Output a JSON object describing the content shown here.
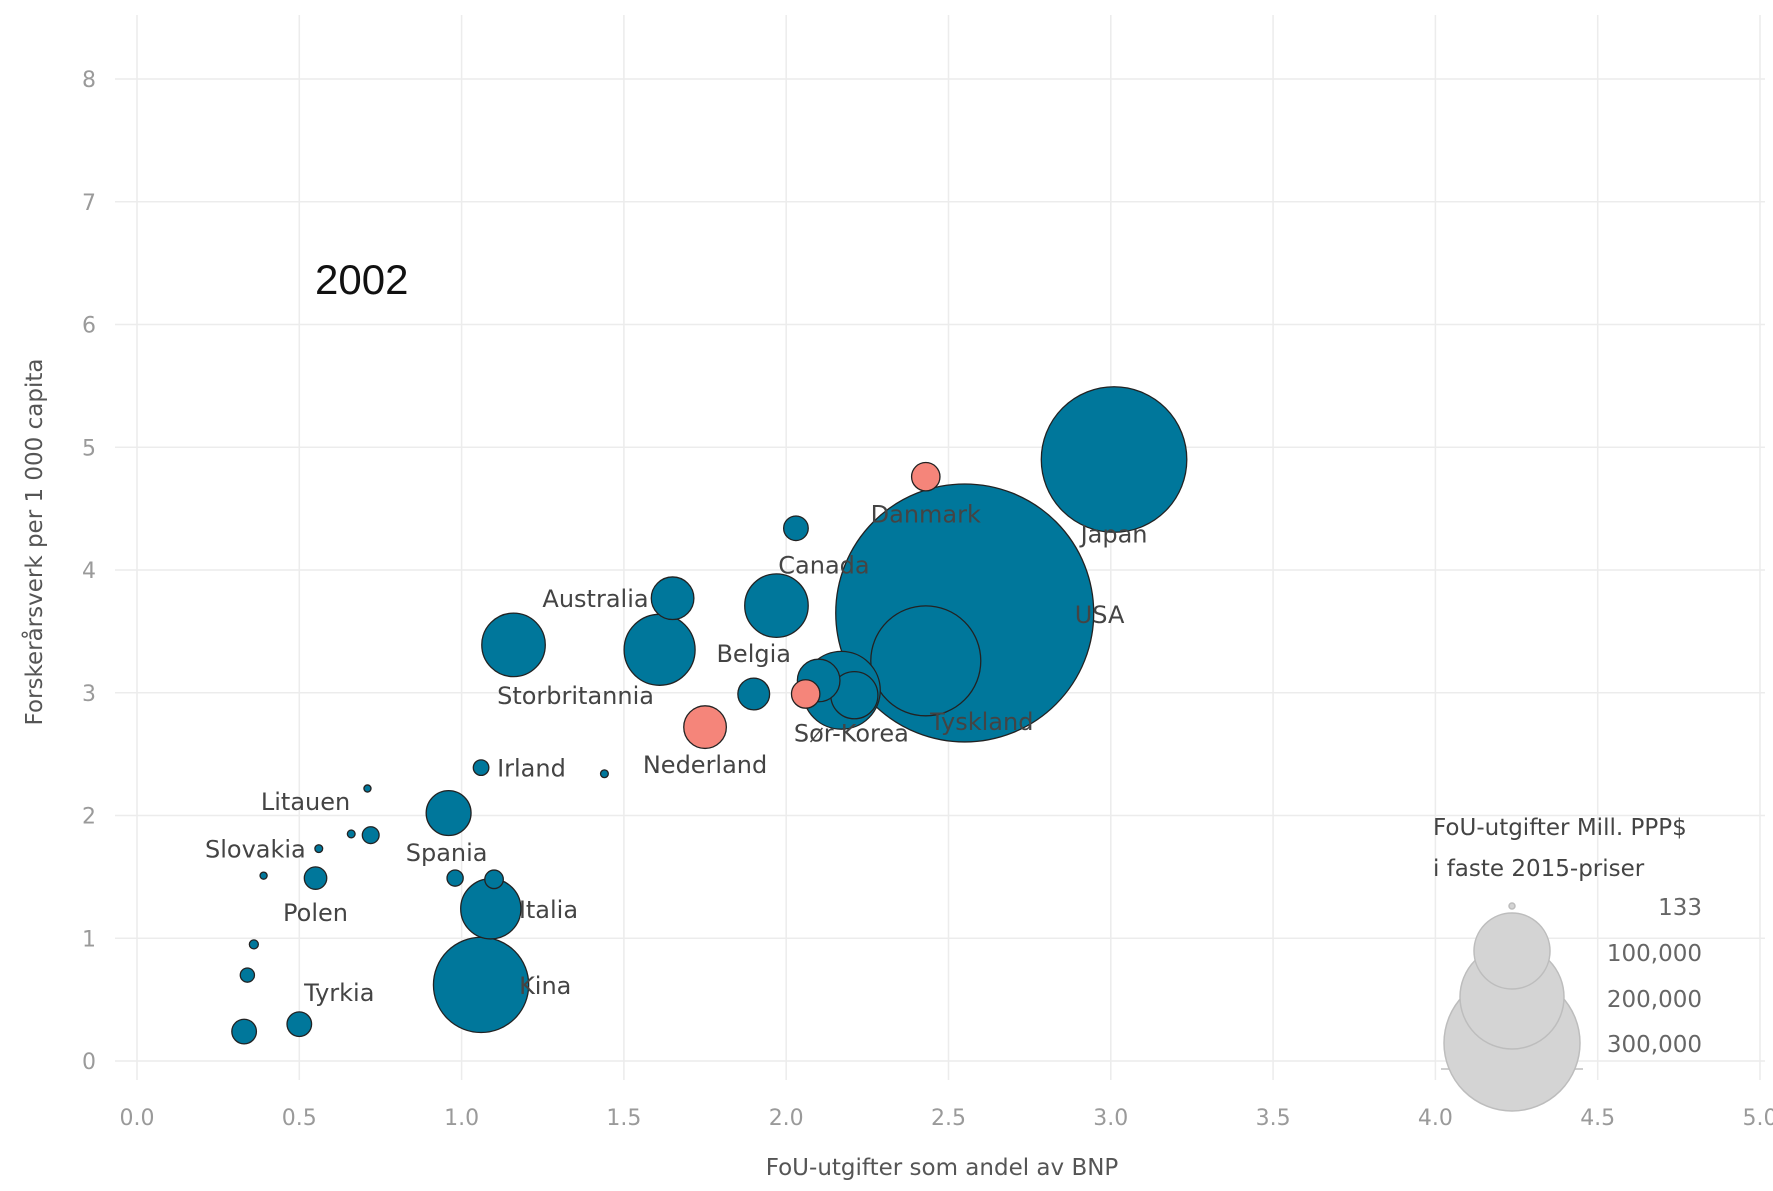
{
  "chart_data": {
    "type": "scatter",
    "annotation": "2002",
    "xlabel": "FoU-utgifter som andel av BNP",
    "ylabel": "Forskerårsverk per 1 000 capita",
    "xlim": [
      0.0,
      5.0
    ],
    "ylim": [
      0,
      8
    ],
    "x_ticks": [
      "0.0",
      "0.5",
      "1.0",
      "1.5",
      "2.0",
      "2.5",
      "3.0",
      "3.5",
      "4.0",
      "4.5",
      "5.0"
    ],
    "y_ticks": [
      "0",
      "1",
      "2",
      "3",
      "4",
      "5",
      "6",
      "7",
      "8"
    ],
    "grid": true,
    "colors": {
      "default": "#00779B",
      "highlight": "#F5857A",
      "outline": "#222222"
    },
    "size_legend": {
      "title": [
        "FoU-utgifter Mill. PPP$",
        "i faste 2015-priser"
      ],
      "values": [
        "133",
        "100,000",
        "200,000",
        "300,000"
      ]
    },
    "points": [
      {
        "label": "Japan",
        "x": 3.01,
        "y": 4.9,
        "size": 105000,
        "color": "default"
      },
      {
        "label": "USA",
        "x": 2.55,
        "y": 3.65,
        "size": 330000,
        "color": "default"
      },
      {
        "label": "Danmark",
        "x": 2.43,
        "y": 4.76,
        "size": 4000,
        "color": "highlight"
      },
      {
        "label": "Tyskland",
        "x": 2.43,
        "y": 3.26,
        "size": 60000,
        "color": "default"
      },
      {
        "label": "Canada",
        "x": 2.03,
        "y": 4.34,
        "size": 3000,
        "color": "default"
      },
      {
        "label": "",
        "x": 1.97,
        "y": 3.71,
        "size": 20000,
        "color": "default"
      },
      {
        "label": "Australia",
        "x": 1.65,
        "y": 3.77,
        "size": 9000,
        "color": "default"
      },
      {
        "label": "",
        "x": 1.61,
        "y": 3.35,
        "size": 25000,
        "color": "default"
      },
      {
        "label": "Storbritannia",
        "x": 1.16,
        "y": 3.39,
        "size": 20000,
        "color": "default"
      },
      {
        "label": "Belgia",
        "x": 1.9,
        "y": 2.99,
        "size": 5000,
        "color": "default"
      },
      {
        "label": "",
        "x": 2.06,
        "y": 2.99,
        "size": 4000,
        "color": "highlight"
      },
      {
        "label": "",
        "x": 2.1,
        "y": 3.1,
        "size": 9000,
        "color": "default"
      },
      {
        "label": "",
        "x": 2.21,
        "y": 2.98,
        "size": 11000,
        "color": "default"
      },
      {
        "label": "Sør-Korea",
        "x": 2.17,
        "y": 3.02,
        "size": 30000,
        "color": "default"
      },
      {
        "label": "Nederland",
        "x": 1.75,
        "y": 2.72,
        "size": 9000,
        "color": "highlight"
      },
      {
        "label": "Irland",
        "x": 1.06,
        "y": 2.39,
        "size": 1200,
        "color": "default"
      },
      {
        "label": "",
        "x": 1.44,
        "y": 2.34,
        "size": 300,
        "color": "default"
      },
      {
        "label": "",
        "x": 0.71,
        "y": 2.22,
        "size": 250,
        "color": "default"
      },
      {
        "label": "Litauen",
        "x": 0.66,
        "y": 1.85,
        "size": 300,
        "color": "default"
      },
      {
        "label": "",
        "x": 0.72,
        "y": 1.84,
        "size": 1400,
        "color": "default"
      },
      {
        "label": "Spania",
        "x": 0.96,
        "y": 2.02,
        "size": 10000,
        "color": "default"
      },
      {
        "label": "Slovakia",
        "x": 0.56,
        "y": 1.73,
        "size": 300,
        "color": "default"
      },
      {
        "label": "",
        "x": 0.39,
        "y": 1.51,
        "size": 250,
        "color": "default"
      },
      {
        "label": "Polen",
        "x": 0.55,
        "y": 1.49,
        "size": 2500,
        "color": "default"
      },
      {
        "label": "",
        "x": 0.98,
        "y": 1.49,
        "size": 1300,
        "color": "default"
      },
      {
        "label": "",
        "x": 1.1,
        "y": 1.48,
        "size": 1700,
        "color": "default"
      },
      {
        "label": "Italia",
        "x": 1.09,
        "y": 1.24,
        "size": 18000,
        "color": "default"
      },
      {
        "label": "",
        "x": 0.36,
        "y": 0.95,
        "size": 400,
        "color": "default"
      },
      {
        "label": "",
        "x": 0.34,
        "y": 0.7,
        "size": 1000,
        "color": "default"
      },
      {
        "label": "Kina",
        "x": 1.06,
        "y": 0.62,
        "size": 45000,
        "color": "default"
      },
      {
        "label": "Tyrkia",
        "x": 0.5,
        "y": 0.3,
        "size": 3000,
        "color": "default"
      },
      {
        "label": "",
        "x": 0.33,
        "y": 0.24,
        "size": 3000,
        "color": "default"
      }
    ]
  }
}
